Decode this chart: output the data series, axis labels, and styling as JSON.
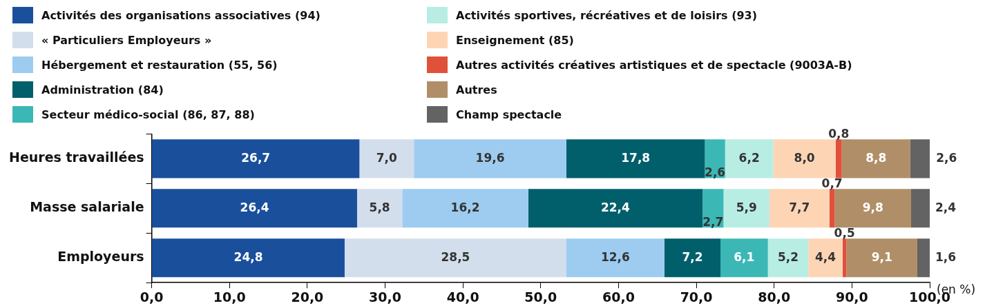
{
  "chart_data": {
    "type": "bar",
    "orientation": "horizontal",
    "stacked": true,
    "legend": "top",
    "grid": false,
    "xlabel": "(en %)",
    "categories": [
      "Heures travaillées",
      "Masse salariale",
      "Employeurs"
    ],
    "xlim": [
      0,
      100
    ],
    "xticks": [
      {
        "value": 0,
        "label": "0,0"
      },
      {
        "value": 10,
        "label": "10,0"
      },
      {
        "value": 20,
        "label": "20,0"
      },
      {
        "value": 30,
        "label": "30,0"
      },
      {
        "value": 40,
        "label": "40,0"
      },
      {
        "value": 50,
        "label": "50,0"
      },
      {
        "value": 60,
        "label": "60,0"
      },
      {
        "value": 70,
        "label": "70,0"
      },
      {
        "value": 80,
        "label": "80,0"
      },
      {
        "value": 90,
        "label": "90,0"
      },
      {
        "value": 100,
        "label": "100,0"
      }
    ],
    "series": [
      {
        "name": "Activités des organisations associatives (94)",
        "color": "#1a4f9c",
        "values": [
          26.7,
          26.4,
          24.8
        ],
        "value_labels": [
          "26,7",
          "26,4",
          "24,8"
        ]
      },
      {
        "name": "« Particuliers Employeurs »",
        "color": "#d3deed",
        "values": [
          7.0,
          5.8,
          28.5
        ],
        "value_labels": [
          "7,0",
          "5,8",
          "28,5"
        ]
      },
      {
        "name": "Hébergement et restauration (55, 56)",
        "color": "#9dccf0",
        "values": [
          19.6,
          16.2,
          12.6
        ],
        "value_labels": [
          "19,6",
          "16,2",
          "12,6"
        ]
      },
      {
        "name": "Administration (84)",
        "color": "#005f6b",
        "values": [
          17.8,
          22.4,
          7.2
        ],
        "value_labels": [
          "17,8",
          "22,4",
          "7,2"
        ]
      },
      {
        "name": "Secteur médico-social (86, 87, 88)",
        "color": "#3bb8b5",
        "values": [
          2.6,
          2.7,
          6.1
        ],
        "value_labels": [
          "2,6",
          "2,7",
          "6,1"
        ]
      },
      {
        "name": "Activités sportives, récréatives et de loisirs (93)",
        "color": "#b8ede4",
        "values": [
          6.2,
          5.9,
          5.2
        ],
        "value_labels": [
          "6,2",
          "5,9",
          "5,2"
        ]
      },
      {
        "name": "Enseignement (85)",
        "color": "#fdd5b5",
        "values": [
          8.0,
          7.7,
          4.4
        ],
        "value_labels": [
          "8,0",
          "7,7",
          "4,4"
        ]
      },
      {
        "name": "Autres activités créatives artistiques et de spectacle (9003A-B)",
        "color": "#e0513a",
        "values": [
          0.8,
          0.7,
          0.5
        ],
        "value_labels": [
          "0,8",
          "0,7",
          "0,5"
        ]
      },
      {
        "name": "Autres",
        "color": "#b08f68",
        "values": [
          8.8,
          9.8,
          9.1
        ],
        "value_labels": [
          "8,8",
          "9,8",
          "9,1"
        ]
      },
      {
        "name": "Champ spectacle",
        "color": "#636363",
        "values": [
          2.6,
          2.4,
          1.6
        ],
        "value_labels": [
          "2,6",
          "2,4",
          "1,6"
        ]
      }
    ]
  }
}
